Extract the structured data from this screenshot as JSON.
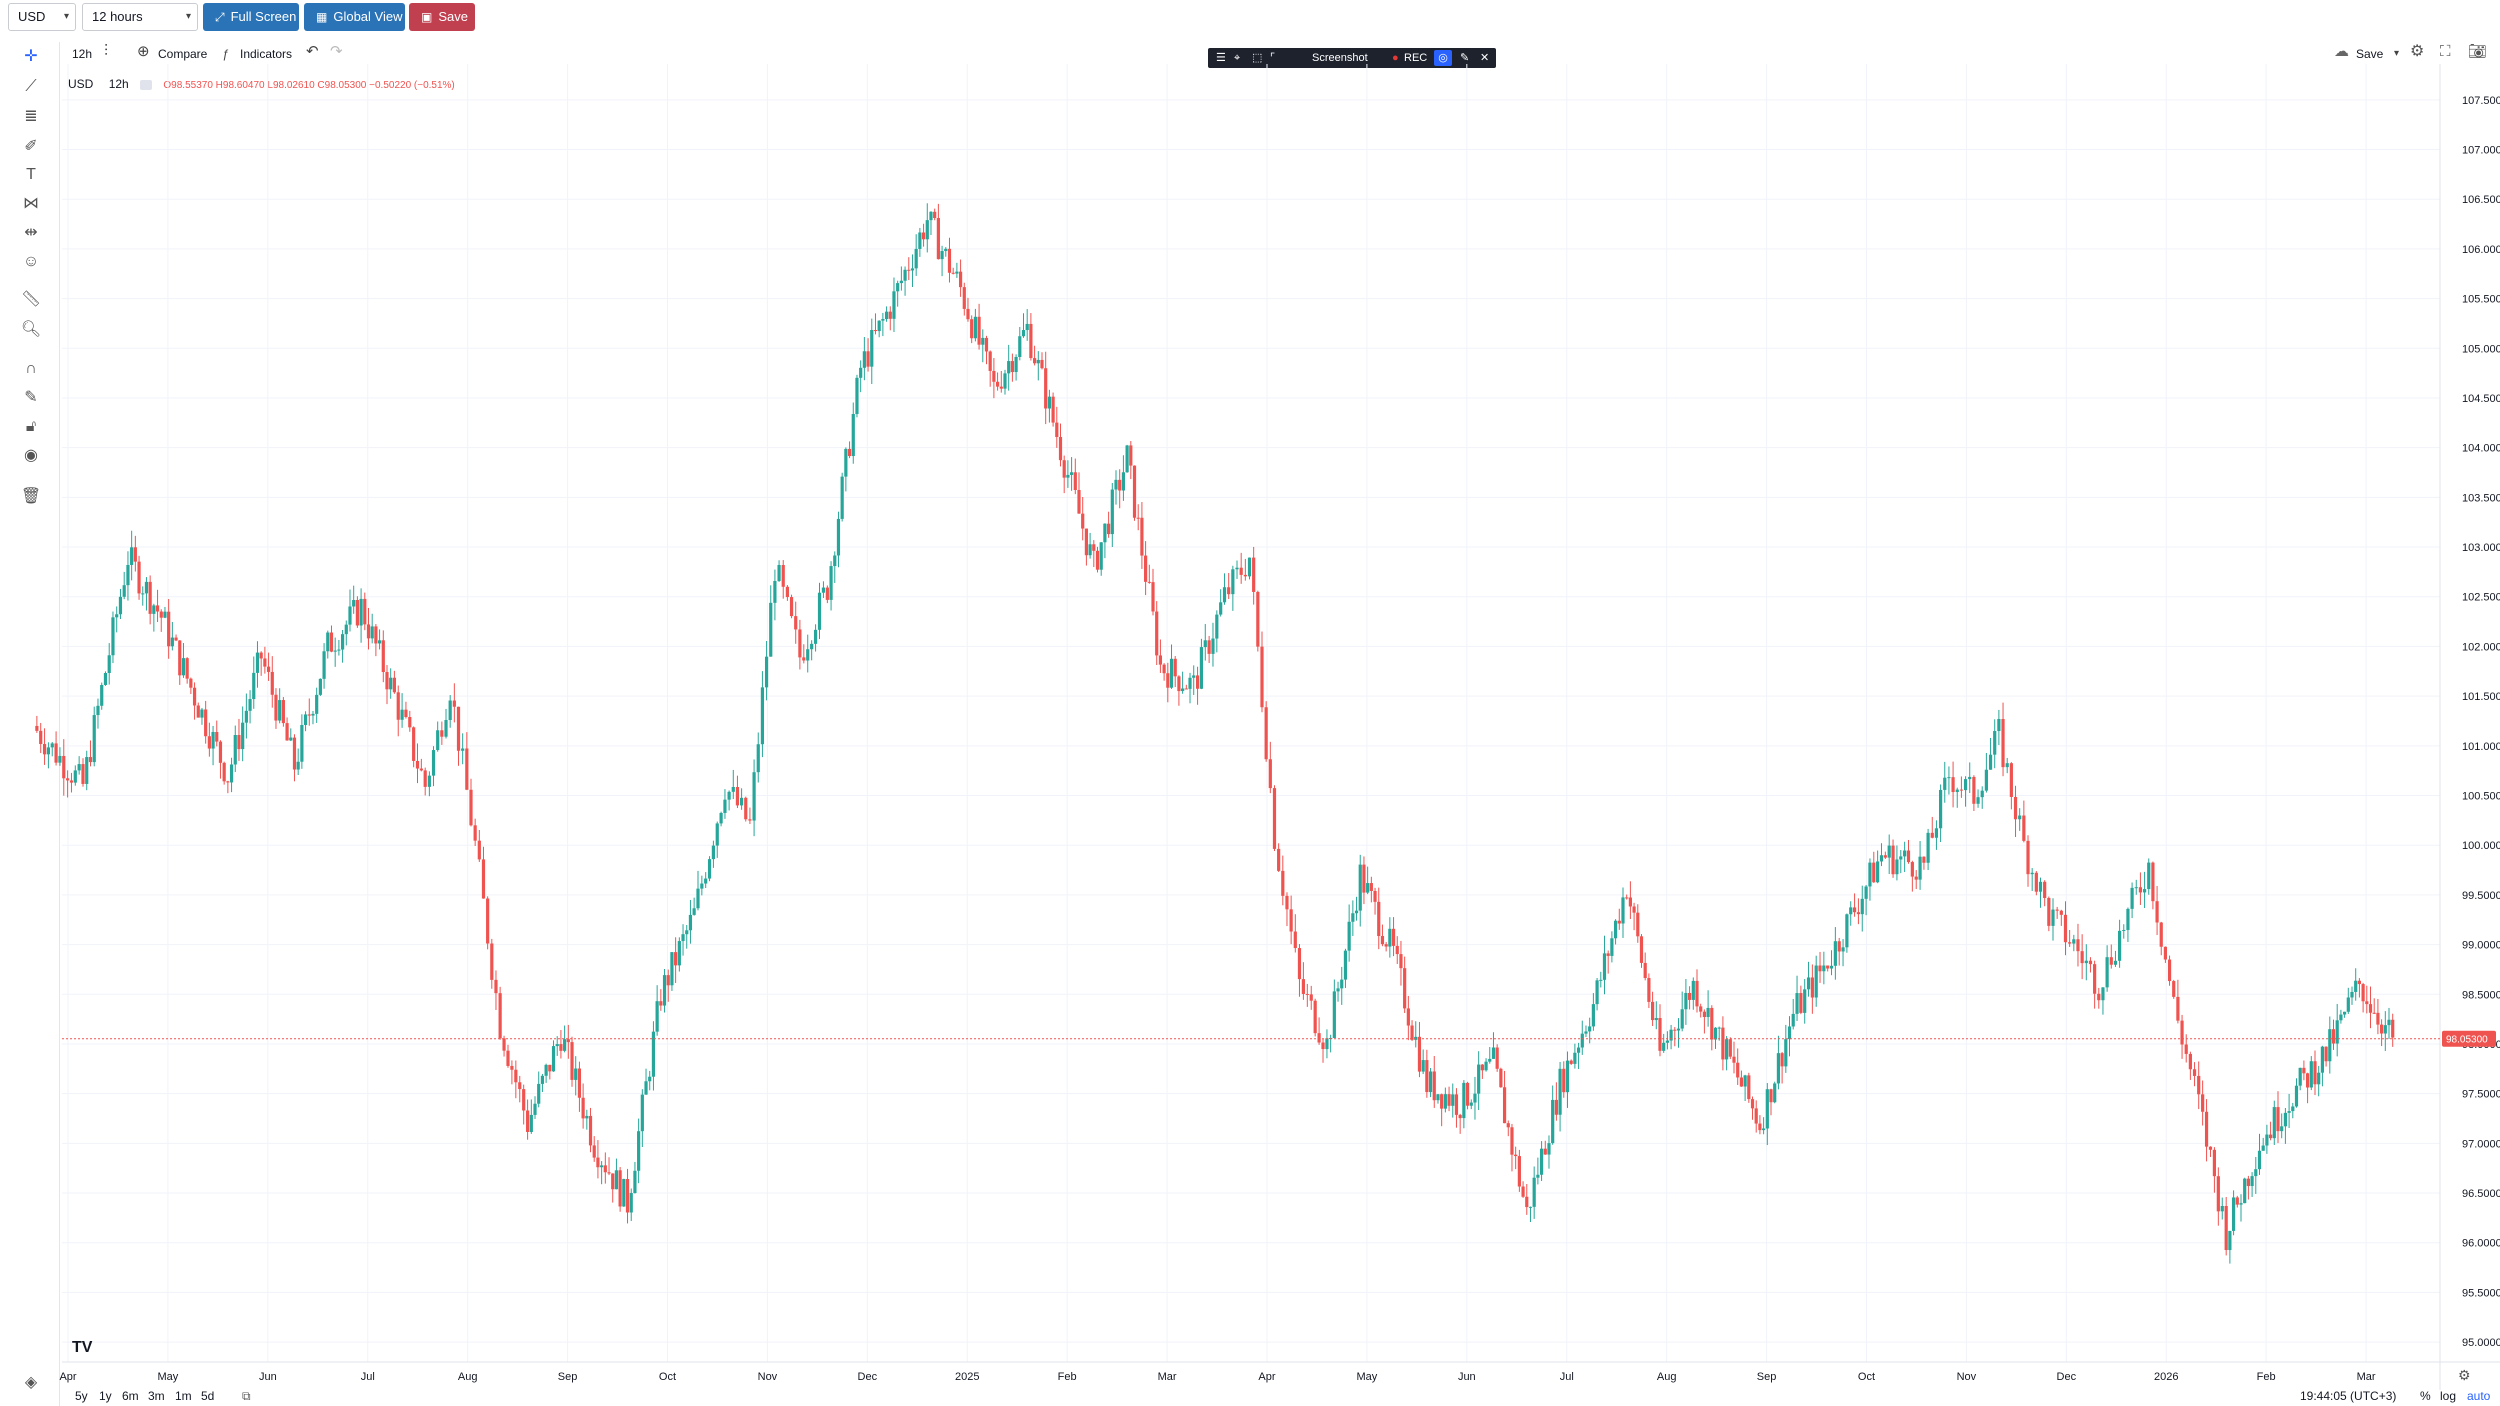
{
  "toolbar": {
    "symbol": "USD",
    "interval": "12 hours",
    "full_screen": "Full Screen",
    "global_view": "Global View",
    "save": "Save",
    "colors": {
      "full_screen": "#2a73b7",
      "global_view": "#2a73b7",
      "save": "#c0404f"
    }
  },
  "chart_header": {
    "interval_short": "12h",
    "compare": "Compare",
    "indicators": "Indicators",
    "save_layout": "Save"
  },
  "screenshot_tool": {
    "label": "Screenshot",
    "rec": "REC"
  },
  "legend": {
    "symbol": "USD",
    "interval": "12h",
    "ohlc": "O98.55370 H98.60470 L98.02610 C98.05300 −0.50220 (−0.51%)"
  },
  "left_tools": [
    "crosshair-icon",
    "trend-line-icon",
    "fib-icon",
    "brush-icon",
    "text-icon",
    "pattern-icon",
    "prediction-icon",
    "emoji-icon",
    "ruler-icon",
    "zoom-icon",
    "magnet-icon",
    "lock-drawing-icon",
    "lock-icon",
    "eye-icon",
    "trash-icon"
  ],
  "bottom": {
    "ranges": [
      "5y",
      "1y",
      "6m",
      "3m",
      "1m",
      "5d"
    ],
    "clock": "19:44:05 (UTC+3)",
    "percent": "%",
    "log": "log",
    "auto": "auto"
  },
  "chart_data": {
    "type": "candlestick",
    "price_axis_ticks": [
      "107.50000",
      "107.00000",
      "106.50000",
      "106.00000",
      "105.50000",
      "105.00000",
      "104.50000",
      "104.00000",
      "103.50000",
      "103.00000",
      "102.50000",
      "102.00000",
      "101.50000",
      "101.00000",
      "100.50000",
      "100.00000",
      "99.50000",
      "99.00000",
      "98.50000",
      "98.00000",
      "97.50000",
      "97.00000",
      "96.50000",
      "96.00000",
      "95.50000",
      "95.00000"
    ],
    "ylim": [
      94.8,
      107.8
    ],
    "time_axis_ticks": [
      "Apr",
      "May",
      "Jun",
      "Jul",
      "Aug",
      "Sep",
      "Oct",
      "Nov",
      "Dec",
      "2025",
      "Feb",
      "Mar",
      "Apr",
      "May",
      "Jun",
      "Jul",
      "Aug",
      "Sep",
      "Oct",
      "Nov",
      "Dec",
      "2026",
      "Feb",
      "Mar"
    ],
    "last_price": "98.05300",
    "last_price_value": 98.053,
    "colors": {
      "up": "#26a69a",
      "down": "#ef5350",
      "last_line": "#ef5350"
    },
    "path": [
      [
        "Apr",
        101.2
      ],
      [
        "Apr",
        100.6
      ],
      [
        "May",
        102.9
      ],
      [
        "May",
        102.3
      ],
      [
        "May",
        101.5
      ],
      [
        "Jun",
        100.7
      ],
      [
        "Jun",
        101.9
      ],
      [
        "Jun",
        100.8
      ],
      [
        "Jul",
        102.0
      ],
      [
        "Jul",
        102.4
      ],
      [
        "Jul",
        101.5
      ],
      [
        "Aug",
        100.6
      ],
      [
        "Aug",
        101.6
      ],
      [
        "Aug",
        100.0
      ],
      [
        "Aug",
        98.2
      ],
      [
        "Sep",
        97.2
      ],
      [
        "Sep",
        98.1
      ],
      [
        "Sep",
        97.0
      ],
      [
        "Oct",
        96.4
      ],
      [
        "Oct",
        98.5
      ],
      [
        "Oct",
        99.3
      ],
      [
        "Nov",
        100.6
      ],
      [
        "Nov",
        100.2
      ],
      [
        "Nov",
        102.8
      ],
      [
        "Nov",
        101.9
      ],
      [
        "Dec",
        102.6
      ],
      [
        "Dec",
        104.8
      ],
      [
        "Dec",
        105.5
      ],
      [
        "2025",
        106.3
      ],
      [
        "2025",
        105.6
      ],
      [
        "2025",
        104.6
      ],
      [
        "Feb",
        105.2
      ],
      [
        "Feb",
        104.0
      ],
      [
        "Feb",
        102.8
      ],
      [
        "Mar",
        103.9
      ],
      [
        "Mar",
        101.8
      ],
      [
        "Mar",
        101.6
      ],
      [
        "Apr",
        102.5
      ],
      [
        "Apr",
        102.9
      ],
      [
        "Apr",
        100.1
      ],
      [
        "Apr",
        98.6
      ],
      [
        "May",
        98.0
      ],
      [
        "May",
        99.7
      ],
      [
        "May",
        98.9
      ],
      [
        "Jun",
        97.6
      ],
      [
        "Jun",
        97.4
      ],
      [
        "Jun",
        97.8
      ],
      [
        "Jul",
        96.3
      ],
      [
        "Jul",
        97.6
      ],
      [
        "Jul",
        98.4
      ],
      [
        "Aug",
        99.6
      ],
      [
        "Aug",
        97.9
      ],
      [
        "Aug",
        98.6
      ],
      [
        "Sep",
        97.9
      ],
      [
        "Sep",
        97.2
      ],
      [
        "Sep",
        98.3
      ],
      [
        "Oct",
        98.9
      ],
      [
        "Oct",
        99.9
      ],
      [
        "Nov",
        99.8
      ],
      [
        "Nov",
        100.7
      ],
      [
        "Nov",
        100.5
      ],
      [
        "Nov",
        101.1
      ],
      [
        "Dec",
        100.0
      ],
      [
        "Dec",
        99.3
      ],
      [
        "Dec",
        99.0
      ],
      [
        "Dec",
        98.6
      ],
      [
        "2026",
        99.2
      ],
      [
        "2026",
        99.8
      ],
      [
        "2026",
        98.4
      ],
      [
        "2026",
        97.4
      ],
      [
        "Feb",
        96.1
      ],
      [
        "Feb",
        97.0
      ],
      [
        "Feb",
        97.5
      ],
      [
        "Mar",
        97.9
      ],
      [
        "Mar",
        98.6
      ],
      [
        "Mar",
        98.05
      ]
    ]
  }
}
